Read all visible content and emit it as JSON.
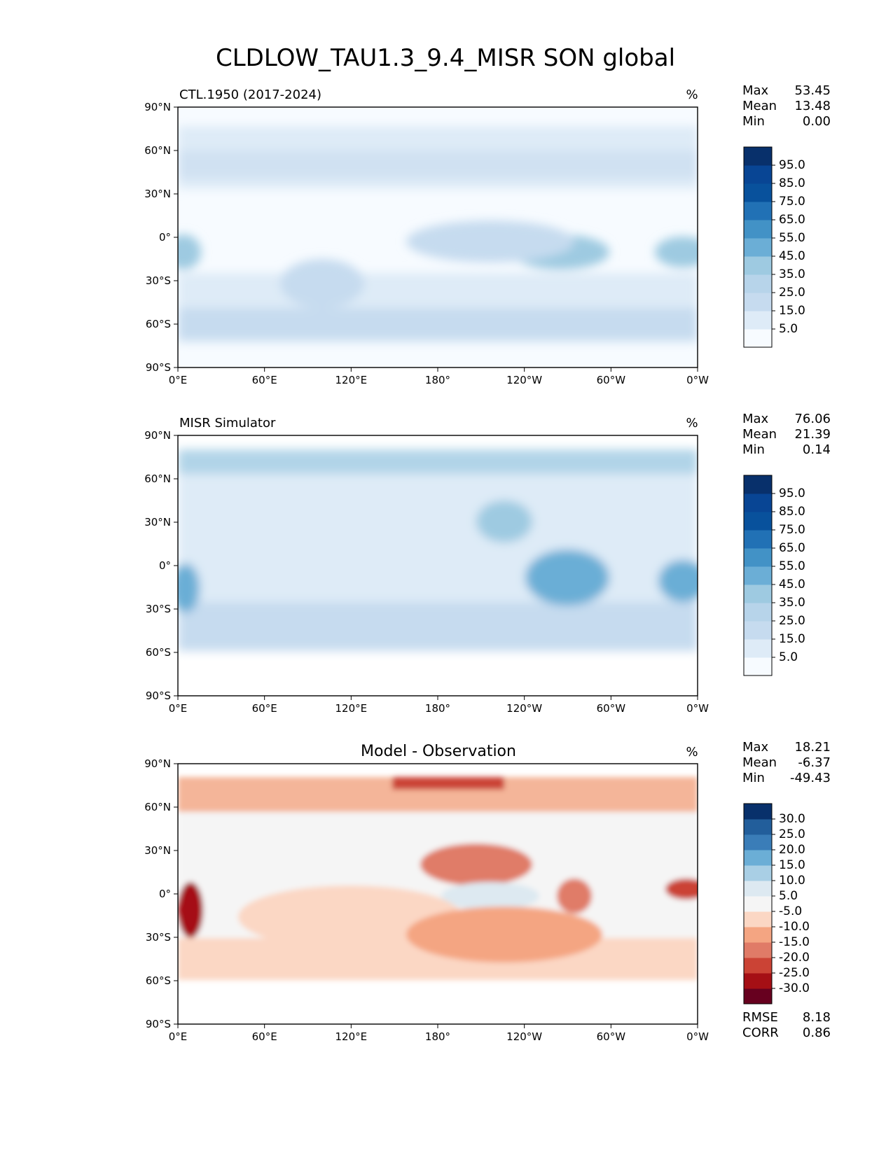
{
  "title": "CLDLOW_TAU1.3_9.4_MISR SON global",
  "x_ticks": [
    "0°E",
    "60°E",
    "120°E",
    "180°",
    "120°W",
    "60°W",
    "0°W"
  ],
  "y_ticks": [
    "90°N",
    "60°N",
    "30°N",
    "0°",
    "30°S",
    "60°S",
    "90°S"
  ],
  "colors": {
    "blues": [
      "#f7fbff",
      "#deebf7",
      "#c6dbef",
      "#b7d4ea",
      "#9ecae1",
      "#6baed6",
      "#4292c6",
      "#2171b5",
      "#08519c",
      "#084594",
      "#08306b"
    ],
    "diverging": [
      "#67001f",
      "#a50f15",
      "#cb4335",
      "#e07b67",
      "#f4a582",
      "#fbd7c4",
      "#f5f5f5",
      "#dde9f1",
      "#a9cfe5",
      "#6baed6",
      "#3a7db8",
      "#225e9b",
      "#08306b"
    ],
    "land": "#ffffff",
    "coast": "#000000"
  },
  "panels": [
    {
      "name": "CTL.1950 (2017-2024)",
      "units": "%",
      "stats": [
        {
          "label": "Max",
          "value": "53.45"
        },
        {
          "label": "Mean",
          "value": "13.48"
        },
        {
          "label": "Min",
          "value": "0.00"
        }
      ],
      "colorbar_ticks": [
        "95.0",
        "85.0",
        "75.0",
        "65.0",
        "55.0",
        "45.0",
        "35.0",
        "25.0",
        "15.0",
        "5.0"
      ]
    },
    {
      "name": "MISR Simulator",
      "units": "%",
      "stats": [
        {
          "label": "Max",
          "value": "76.06"
        },
        {
          "label": "Mean",
          "value": "21.39"
        },
        {
          "label": "Min",
          "value": "0.14"
        }
      ],
      "colorbar_ticks": [
        "95.0",
        "85.0",
        "75.0",
        "65.0",
        "55.0",
        "45.0",
        "35.0",
        "25.0",
        "15.0",
        "5.0"
      ]
    },
    {
      "name": "Model - Observation",
      "units": "%",
      "stats": [
        {
          "label": "Max",
          "value": "18.21"
        },
        {
          "label": "Mean",
          "value": "-6.37"
        },
        {
          "label": "Min",
          "value": "-49.43"
        }
      ],
      "colorbar_ticks": [
        "30.0",
        "25.0",
        "20.0",
        "15.0",
        "10.0",
        "5.0",
        "-5.0",
        "-10.0",
        "-15.0",
        "-20.0",
        "-25.0",
        "-30.0"
      ],
      "extra_stats": [
        {
          "label": "RMSE",
          "value": "8.18"
        },
        {
          "label": "CORR",
          "value": "0.86"
        }
      ]
    }
  ],
  "chart_data": [
    {
      "type": "heatmap",
      "title": "CTL.1950 (2017-2024)",
      "units": "%",
      "xlim": [
        0,
        360
      ],
      "ylim": [
        -90,
        90
      ],
      "levels": [
        5,
        15,
        25,
        35,
        45,
        55,
        65,
        75,
        85,
        95
      ],
      "approx_fields": [
        {
          "region": "Southern Ocean 50S-65S",
          "value": 25
        },
        {
          "region": "SE Pacific stratocumulus off Peru",
          "value": 35
        },
        {
          "region": "SE Atlantic off Namibia",
          "value": 40
        },
        {
          "region": "North Pacific storm track",
          "value": 20
        },
        {
          "region": "Tropical western Pacific",
          "value": 8
        },
        {
          "region": "Continents",
          "value": 5
        },
        {
          "region": "Antarctica",
          "value": 3
        }
      ],
      "stats": {
        "max": 53.45,
        "mean": 13.48,
        "min": 0.0
      }
    },
    {
      "type": "heatmap",
      "title": "MISR Simulator",
      "units": "%",
      "xlim": [
        0,
        360
      ],
      "ylim": [
        -90,
        90
      ],
      "levels": [
        5,
        15,
        25,
        35,
        45,
        55,
        65,
        75,
        85,
        95
      ],
      "approx_fields": [
        {
          "region": "Southern Ocean 40S-60S",
          "value": 32
        },
        {
          "region": "SE Pacific stratocumulus off Peru",
          "value": 45
        },
        {
          "region": "SE Atlantic off Namibia",
          "value": 45
        },
        {
          "region": "NE Pacific off California",
          "value": 38
        },
        {
          "region": "Arctic/North Atlantic",
          "value": 35
        },
        {
          "region": "Tropical oceans",
          "value": 20
        }
      ],
      "stats": {
        "max": 76.06,
        "mean": 21.39,
        "min": 0.14
      }
    },
    {
      "type": "heatmap",
      "title": "Model - Observation",
      "units": "%",
      "xlim": [
        0,
        360
      ],
      "ylim": [
        -90,
        90
      ],
      "levels": [
        -30,
        -25,
        -20,
        -15,
        -10,
        -5,
        5,
        10,
        15,
        20,
        25,
        30
      ],
      "approx_fields": [
        {
          "region": "Arctic north of Siberia",
          "value": -25
        },
        {
          "region": "SE Atlantic off Namibia coast",
          "value": -30
        },
        {
          "region": "NE Pacific",
          "value": -15
        },
        {
          "region": "SE Pacific",
          "value": -12
        },
        {
          "region": "Equatorial east Pacific",
          "value": 8
        },
        {
          "region": "Southern Ocean",
          "value": -10
        }
      ],
      "stats": {
        "max": 18.21,
        "mean": -6.37,
        "min": -49.43,
        "rmse": 8.18,
        "corr": 0.86
      }
    }
  ]
}
